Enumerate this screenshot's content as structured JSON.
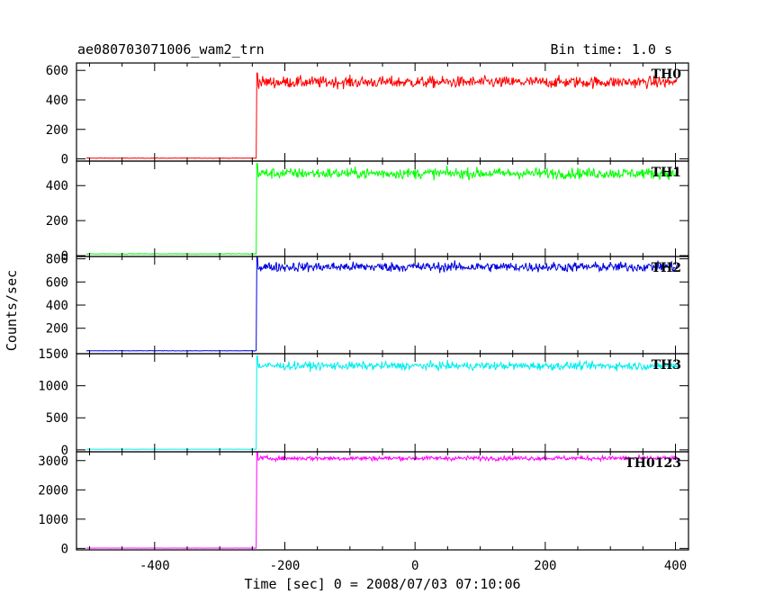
{
  "chart_data": {
    "type": "line",
    "title_left": "ae080703071006_wam2_trn",
    "title_right": "Bin time: 1.0 s",
    "xlabel": "Time [sec] 0 = 2008/07/03 07:10:06",
    "ylabel": "Counts/sec",
    "xlim": [
      -520,
      420
    ],
    "x_ticks": [
      -400,
      -200,
      0,
      200,
      400
    ],
    "onset_time": -243,
    "panels": [
      {
        "name": "TH0",
        "color": "#ff0000",
        "ylim": [
          -15,
          650
        ],
        "y_ticks": [
          0,
          200,
          400,
          600
        ],
        "baseline": 5,
        "mean": 520,
        "noise": 28
      },
      {
        "name": "TH1",
        "color": "#00ff00",
        "ylim": [
          -5,
          540
        ],
        "y_ticks": [
          0,
          200,
          400
        ],
        "baseline": 10,
        "mean": 470,
        "noise": 22
      },
      {
        "name": "TH2",
        "color": "#0000dd",
        "ylim": [
          -20,
          820
        ],
        "y_ticks": [
          200,
          400,
          600,
          800
        ],
        "baseline": 5,
        "mean": 730,
        "noise": 30
      },
      {
        "name": "TH3",
        "color": "#00eeee",
        "ylim": [
          -30,
          1500
        ],
        "y_ticks": [
          0,
          500,
          1000,
          1500
        ],
        "baseline": 10,
        "mean": 1310,
        "noise": 45
      },
      {
        "name": "TH0123",
        "color": "#ff00ff",
        "ylim": [
          -50,
          3300
        ],
        "y_ticks": [
          0,
          1000,
          2000,
          3000
        ],
        "baseline": 10,
        "mean": 3080,
        "noise": 55
      }
    ]
  }
}
